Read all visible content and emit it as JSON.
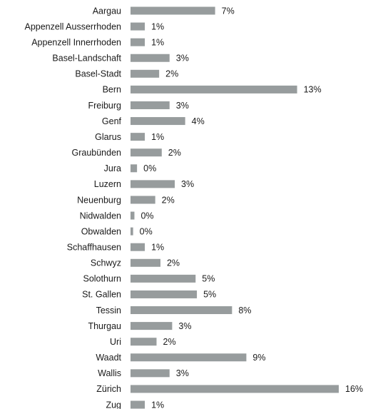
{
  "chart_data": {
    "type": "bar",
    "orientation": "horizontal",
    "title": "",
    "xlabel": "",
    "ylabel": "",
    "grid": false,
    "legend": "none",
    "bar_color": "#979c9d",
    "value_suffix": "%",
    "categories": [
      "Aargau",
      "Appenzell Ausserrhoden",
      "Appenzell Innerrhoden",
      "Basel-Landschaft",
      "Basel-Stadt",
      "Bern",
      "Freiburg",
      "Genf",
      "Glarus",
      "Graubünden",
      "Jura",
      "Luzern",
      "Neuenburg",
      "Nidwalden",
      "Obwalden",
      "Schaffhausen",
      "Schwyz",
      "Solothurn",
      "St. Gallen",
      "Tessin",
      "Thurgau",
      "Uri",
      "Waadt",
      "Wallis",
      "Zürich",
      "Zug"
    ],
    "values": [
      6.5,
      1.1,
      1.1,
      3.0,
      2.2,
      12.8,
      3.0,
      4.2,
      1.1,
      2.4,
      0.5,
      3.4,
      1.9,
      0.3,
      0.2,
      1.1,
      2.3,
      5.0,
      5.1,
      7.8,
      3.2,
      2.0,
      8.9,
      3.0,
      16.0,
      1.1
    ],
    "value_labels": [
      "7%",
      "1%",
      "1%",
      "3%",
      "2%",
      "13%",
      "3%",
      "4%",
      "1%",
      "2%",
      "0%",
      "3%",
      "2%",
      "0%",
      "0%",
      "1%",
      "2%",
      "5%",
      "5%",
      "8%",
      "3%",
      "2%",
      "9%",
      "3%",
      "16%",
      "1%"
    ],
    "xlim": [
      0,
      16
    ]
  }
}
